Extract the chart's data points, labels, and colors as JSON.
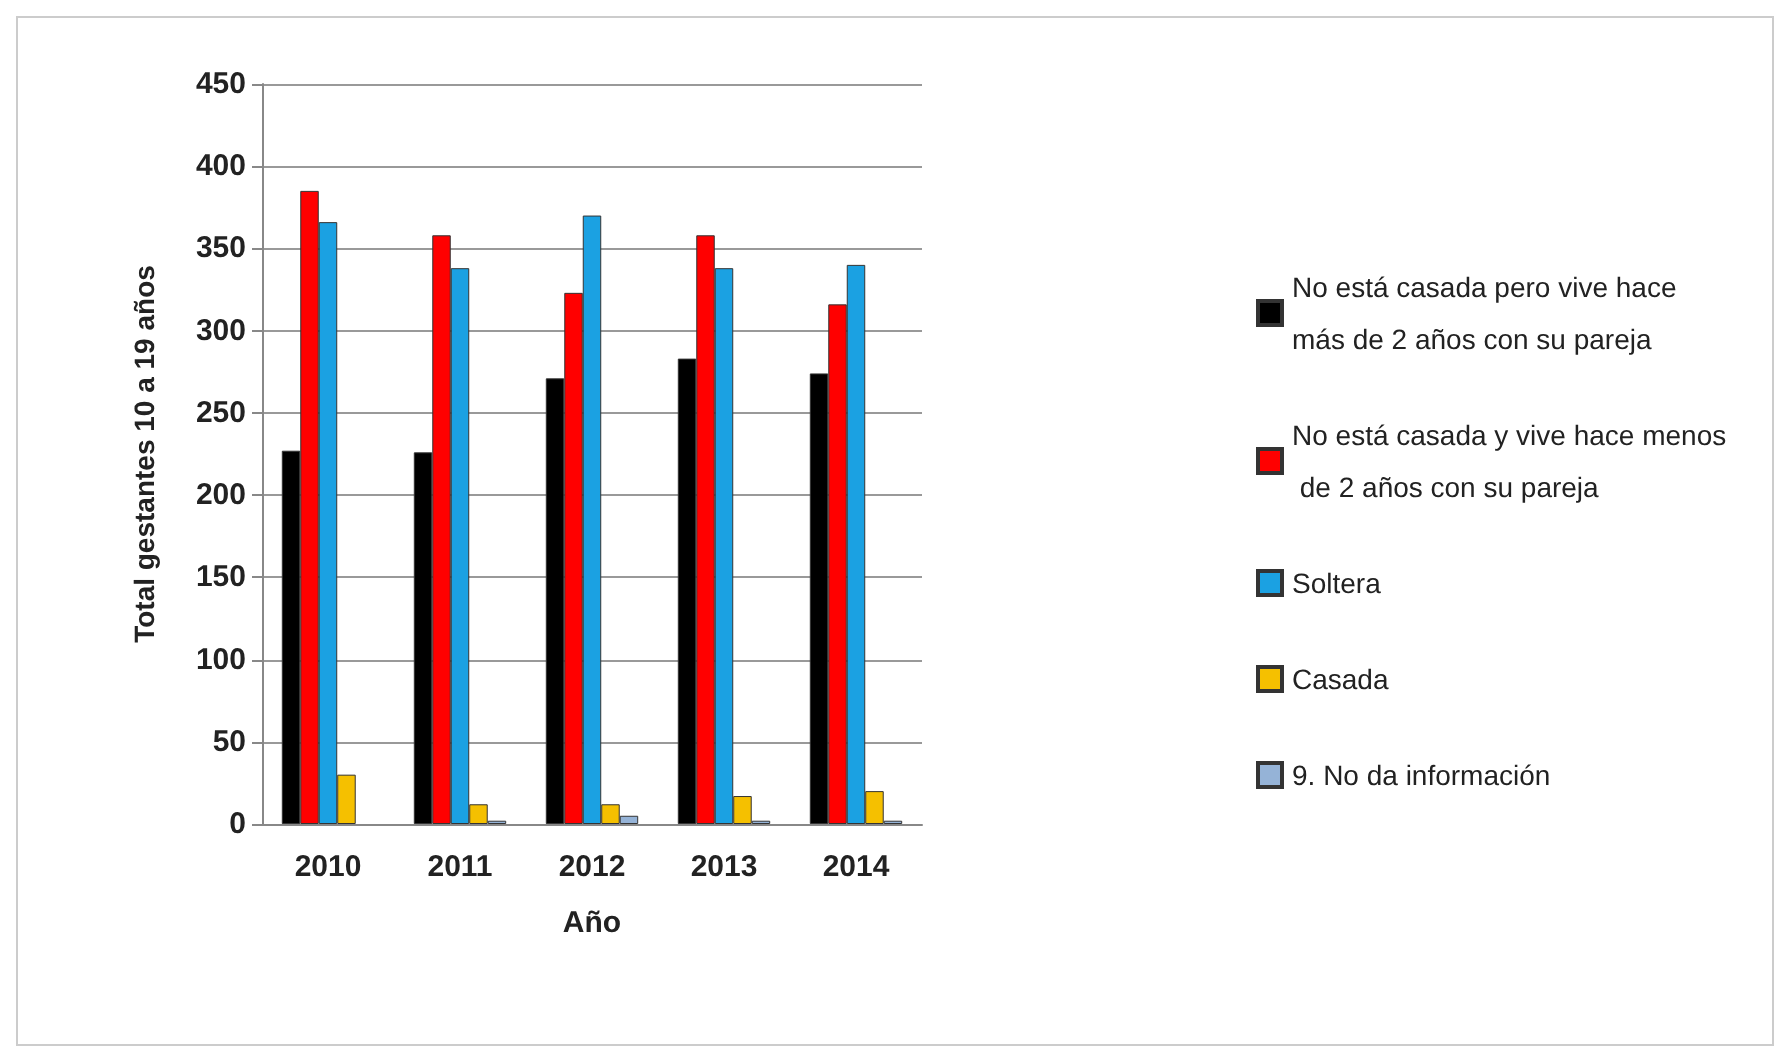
{
  "chart_data": {
    "type": "bar",
    "xlabel": "Año",
    "ylabel": "Total gestantes 10 a 19 años",
    "categories": [
      "2010",
      "2011",
      "2012",
      "2013",
      "2014"
    ],
    "series": [
      {
        "name": "No está casada pero vive hace más de 2 años con su pareja",
        "color": "#000000",
        "values": [
          227,
          226,
          271,
          283,
          274
        ]
      },
      {
        "name": "No está casada y vive hace menos de 2 años con su pareja",
        "color": "#ff0000",
        "values": [
          385,
          358,
          323,
          358,
          316
        ]
      },
      {
        "name": "Soltera",
        "color": "#1ba1e2",
        "values": [
          366,
          338,
          370,
          338,
          340
        ]
      },
      {
        "name": "Casada",
        "color": "#f5c000",
        "values": [
          30,
          12,
          12,
          17,
          20
        ]
      },
      {
        "name": "9. No da información",
        "color": "#95b3d7",
        "values": [
          0,
          2,
          5,
          2,
          2
        ]
      }
    ],
    "ylim": [
      0,
      450
    ],
    "yticks": [
      0,
      50,
      100,
      150,
      200,
      250,
      300,
      350,
      400,
      450
    ],
    "grid": "y",
    "legend": "right"
  }
}
